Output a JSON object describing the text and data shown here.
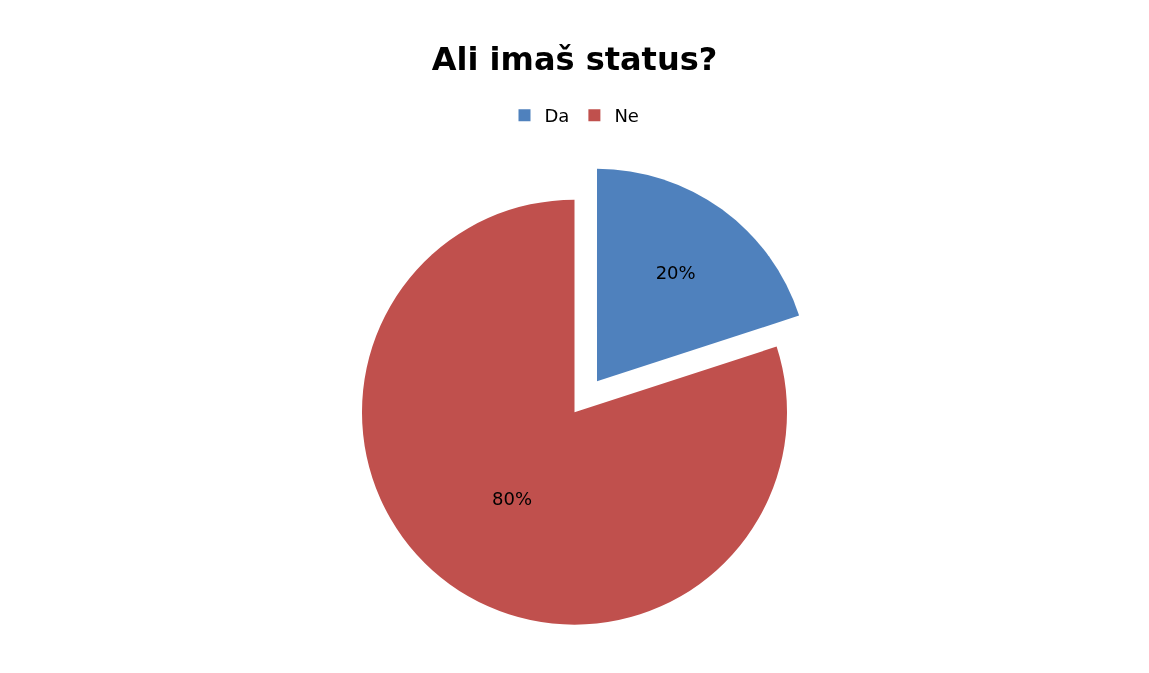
{
  "chart_data": {
    "type": "pie",
    "title": "Ali imaš status?",
    "categories": [
      "Da",
      "Ne"
    ],
    "values": [
      20,
      80
    ],
    "value_labels": [
      "20%",
      "80%"
    ],
    "colors": [
      "#4f81bd",
      "#c0504d"
    ],
    "legend": "top"
  }
}
